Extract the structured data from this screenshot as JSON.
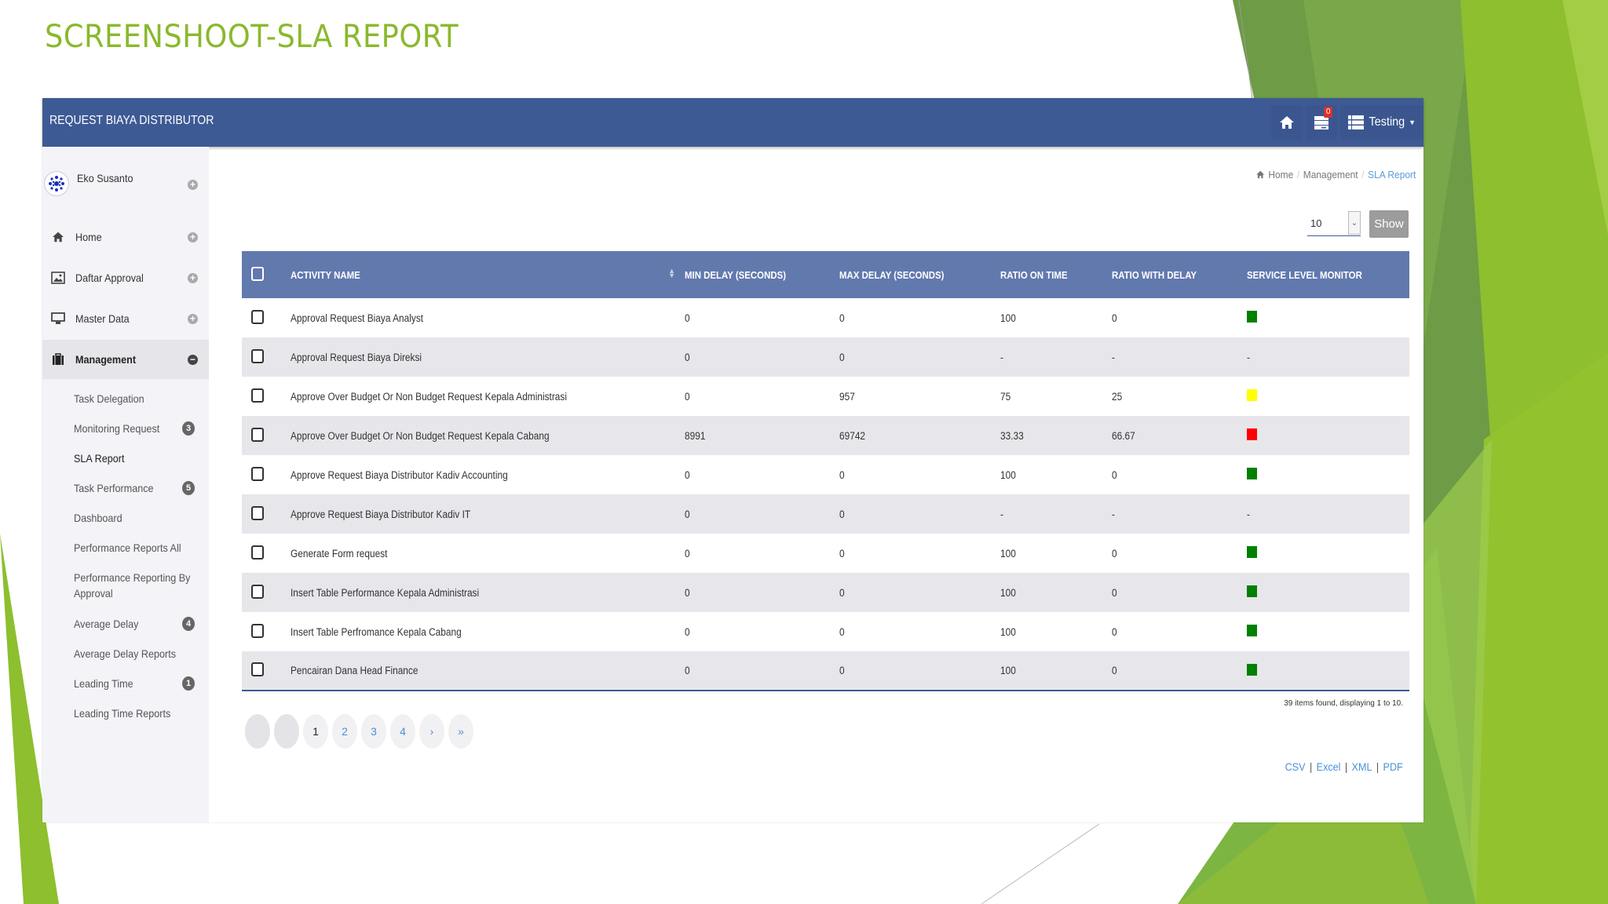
{
  "slide": {
    "title": "SCREENSHOOT-SLA REPORT"
  },
  "colors": {
    "title_green": "#8ab92d",
    "topbar_blue": "#3e5a95",
    "table_header_blue": "#6279ae",
    "sl_green": "#008000",
    "sl_yellow": "#ffff00",
    "sl_red": "#ff0000",
    "link_blue": "#4a90d9"
  },
  "topbar": {
    "brand": "REQUEST BIAYA DISTRIBUTOR",
    "notification_count": "0",
    "user_menu_label": "Testing"
  },
  "sidebar": {
    "user_name": "Eko Susanto",
    "items": [
      {
        "label": "Home",
        "icon": "home-icon"
      },
      {
        "label": "Daftar Approval",
        "icon": "image-icon"
      },
      {
        "label": "Master Data",
        "icon": "monitor-icon"
      },
      {
        "label": "Management",
        "icon": "briefcase-icon",
        "expanded": true
      }
    ],
    "submenu": [
      {
        "label": "Task Delegation",
        "badge": ""
      },
      {
        "label": "Monitoring Request",
        "badge": "3"
      },
      {
        "label": "SLA Report",
        "badge": "",
        "current": true
      },
      {
        "label": "Task Performance",
        "badge": "5"
      },
      {
        "label": "Dashboard",
        "badge": ""
      },
      {
        "label": "Performance Reports All",
        "badge": ""
      },
      {
        "label": "Performance Reporting By Approval",
        "badge": ""
      },
      {
        "label": "Average Delay",
        "badge": "4"
      },
      {
        "label": "Average Delay Reports",
        "badge": ""
      },
      {
        "label": "Leading Time",
        "badge": "1"
      },
      {
        "label": "Leading Time Reports",
        "badge": ""
      }
    ]
  },
  "breadcrumb": {
    "home": "Home",
    "section": "Management",
    "current": "SLA Report"
  },
  "controls": {
    "page_size": "10",
    "show_label": "Show"
  },
  "table": {
    "headers": {
      "activity": "ACTIVITY NAME",
      "min_delay": "MIN DELAY (SECONDS)",
      "max_delay": "MAX DELAY (SECONDS)",
      "ratio_on_time": "RATIO ON TIME",
      "ratio_with_delay": "RATIO WITH DELAY",
      "service_level": "SERVICE LEVEL MONITOR"
    },
    "rows": [
      {
        "activity": "Approval Request Biaya Analyst",
        "min": "0",
        "max": "0",
        "on_time": "100",
        "with_delay": "0",
        "sl": "green"
      },
      {
        "activity": "Approval Request Biaya Direksi",
        "min": "0",
        "max": "0",
        "on_time": "-",
        "with_delay": "-",
        "sl": "-"
      },
      {
        "activity": "Approve Over Budget Or Non Budget Request Kepala Administrasi",
        "min": "0",
        "max": "957",
        "on_time": "75",
        "with_delay": "25",
        "sl": "yellow"
      },
      {
        "activity": "Approve Over Budget Or Non Budget Request Kepala Cabang",
        "min": "8991",
        "max": "69742",
        "on_time": "33.33",
        "with_delay": "66.67",
        "sl": "red"
      },
      {
        "activity": "Approve Request Biaya Distributor Kadiv Accounting",
        "min": "0",
        "max": "0",
        "on_time": "100",
        "with_delay": "0",
        "sl": "green"
      },
      {
        "activity": "Approve Request Biaya Distributor Kadiv IT",
        "min": "0",
        "max": "0",
        "on_time": "-",
        "with_delay": "-",
        "sl": "-"
      },
      {
        "activity": "Generate Form request",
        "min": "0",
        "max": "0",
        "on_time": "100",
        "with_delay": "0",
        "sl": "green"
      },
      {
        "activity": "Insert Table Performance Kepala Administrasi",
        "min": "0",
        "max": "0",
        "on_time": "100",
        "with_delay": "0",
        "sl": "green"
      },
      {
        "activity": "Insert Table Perfromance Kepala Cabang",
        "min": "0",
        "max": "0",
        "on_time": "100",
        "with_delay": "0",
        "sl": "green"
      },
      {
        "activity": "Pencairan Dana Head Finance",
        "min": "0",
        "max": "0",
        "on_time": "100",
        "with_delay": "0",
        "sl": "green"
      }
    ],
    "summary": "39 items found, displaying 1 to 10."
  },
  "pagination": {
    "pages": [
      "1",
      "2",
      "3",
      "4"
    ],
    "next": "›",
    "last": "»",
    "current": "1"
  },
  "exports": [
    "CSV",
    "Excel",
    "XML",
    "PDF"
  ]
}
